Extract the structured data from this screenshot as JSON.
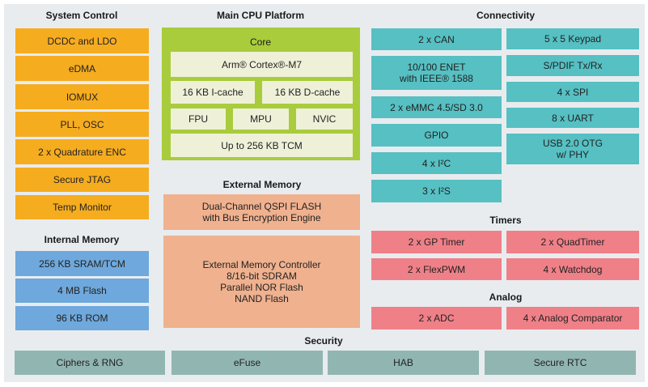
{
  "colors": {
    "system_control": "#f6ac1f",
    "internal_memory": "#6fa8dc",
    "cpu_platform": "#a9cc3c",
    "cpu_inner": "#eef1d8",
    "external_memory": "#f0b18f",
    "connectivity": "#56c0c3",
    "timers_analog": "#ef8088",
    "security": "#91b6b2",
    "background": "#e8ecef"
  },
  "system_control": {
    "title": "System Control",
    "items": [
      "DCDC and LDO",
      "eDMA",
      "IOMUX",
      "PLL, OSC",
      "2 x Quadrature ENC",
      "Secure JTAG",
      "Temp Monitor"
    ]
  },
  "internal_memory": {
    "title": "Internal Memory",
    "items": [
      "256 KB SRAM/TCM",
      "4 MB Flash",
      "96 KB ROM"
    ]
  },
  "cpu": {
    "title": "Main CPU Platform",
    "core_label": "Core",
    "core": "Arm® Cortex®-M7",
    "icache": "16 KB I-cache",
    "dcache": "16 KB D-cache",
    "fpu": "FPU",
    "mpu": "MPU",
    "nvic": "NVIC",
    "tcm": "Up to 256 KB TCM"
  },
  "external_memory": {
    "title": "External Memory",
    "items": [
      "Dual-Channel QSPI FLASH\nwith Bus Encryption Engine",
      "External Memory Controller\n8/16-bit SDRAM\nParallel NOR Flash\nNAND Flash"
    ]
  },
  "connectivity": {
    "title": "Connectivity",
    "left": [
      "2 x CAN",
      "10/100 ENET\nwith IEEE® 1588",
      "2 x eMMC 4.5/SD 3.0",
      "GPIO",
      "4 x I²C",
      "3 x I²S"
    ],
    "right": [
      "5 x 5 Keypad",
      "S/PDIF Tx/Rx",
      "4 x SPI",
      "8 x UART",
      "USB 2.0 OTG\nw/ PHY"
    ]
  },
  "timers": {
    "title": "Timers",
    "items": [
      "2 x GP Timer",
      "2 x QuadTimer",
      "2 x FlexPWM",
      "4 x Watchdog"
    ]
  },
  "analog": {
    "title": "Analog",
    "items": [
      "2 x ADC",
      "4 x Analog Comparator"
    ]
  },
  "security": {
    "title": "Security",
    "items": [
      "Ciphers & RNG",
      "eFuse",
      "HAB",
      "Secure RTC"
    ]
  }
}
